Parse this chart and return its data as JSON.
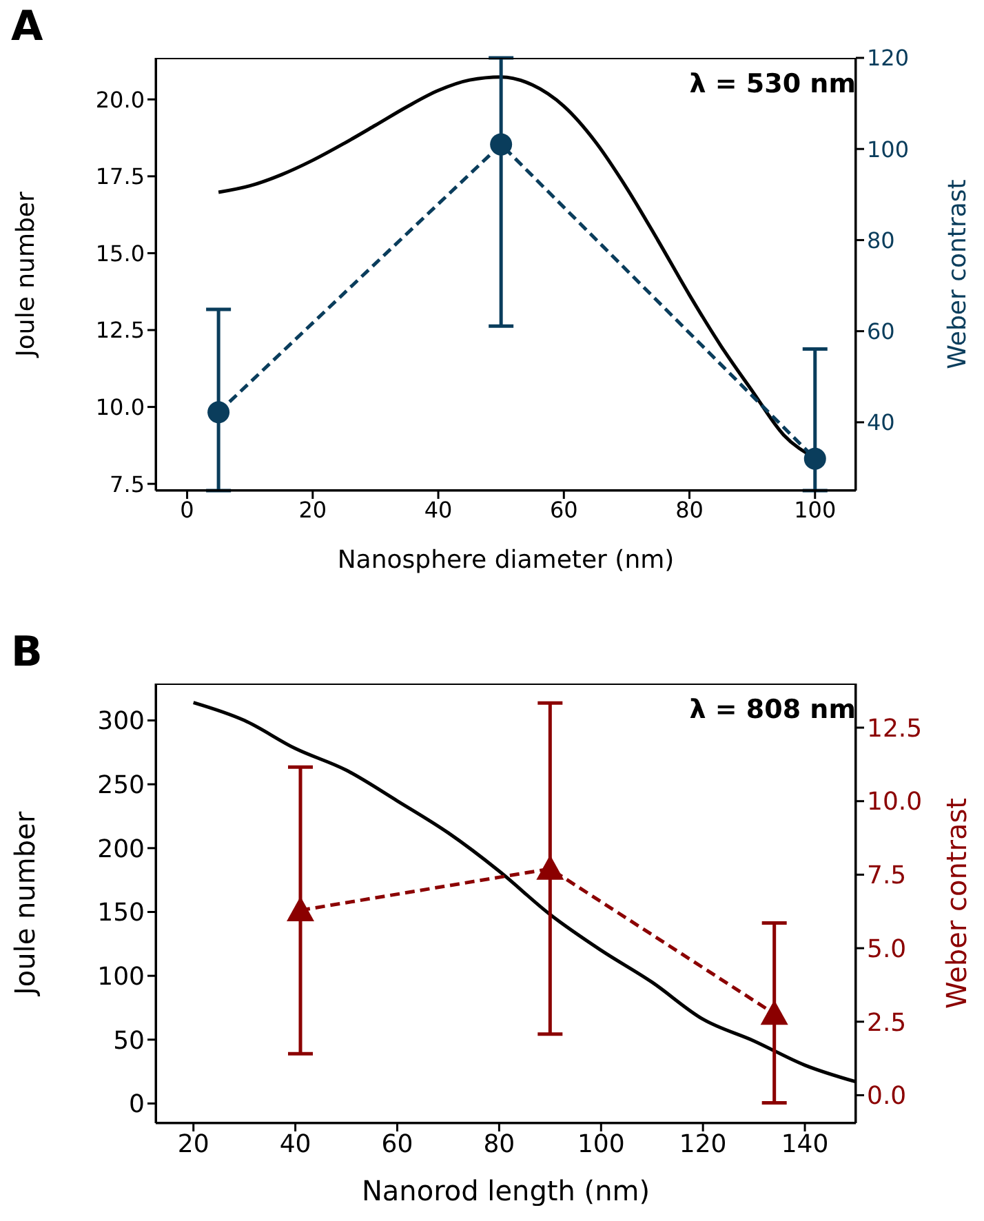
{
  "chart_data": [
    {
      "type": "line",
      "title": "A",
      "xlabel": "Nanosphere diameter (nm)",
      "ylabel": "Joule number",
      "y2label": "Weber contrast",
      "annotations": [
        "λ = 530 nm"
      ],
      "xlim": [
        -5,
        106.5
      ],
      "xticks": [
        0,
        20,
        40,
        60,
        80,
        100
      ],
      "ylim": [
        7.28,
        21.35
      ],
      "yticks": [
        {
          "value": 7.5,
          "label": "7.5"
        },
        {
          "value": 10,
          "label": "10.0"
        },
        {
          "value": 12.5,
          "label": "12.5"
        },
        {
          "value": 15,
          "label": "15.0"
        },
        {
          "value": 17.5,
          "label": "17.5"
        },
        {
          "value": 20,
          "label": "20.0"
        }
      ],
      "y2lim": [
        25,
        120
      ],
      "y2ticks": [
        40,
        60,
        80,
        100,
        120
      ],
      "series": [
        {
          "color": "#000000",
          "line_style": "solid",
          "marker": "none",
          "x": [
            5,
            10,
            15,
            20,
            25,
            30,
            35,
            40,
            45,
            50,
            55,
            60,
            65,
            70,
            75,
            80,
            85,
            90,
            95,
            100
          ],
          "values": [
            16.98,
            17.19,
            17.55,
            18.02,
            18.57,
            19.16,
            19.76,
            20.29,
            20.63,
            20.73,
            20.47,
            19.78,
            18.63,
            17.12,
            15.41,
            13.64,
            11.99,
            10.52,
            9.09,
            8.34
          ]
        },
        {
          "color": "#0a3d5c",
          "axis": "y2",
          "line_style": "dashed",
          "marker": "circle",
          "x": [
            5,
            50,
            100
          ],
          "values": [
            42.2,
            101.0,
            32.0
          ],
          "errors": [
            [
              25,
              64.8
            ],
            [
              61.1,
              120
            ],
            [
              25,
              56.1
            ]
          ]
        }
      ]
    },
    {
      "type": "line",
      "title": "B",
      "xlabel": "Nanorod length (nm)",
      "ylabel": "Joule number",
      "y2label": "Weber contrast",
      "annotations": [
        "λ = 808 nm"
      ],
      "xlim": [
        12.6,
        150
      ],
      "xticks": [
        20,
        40,
        60,
        80,
        100,
        120,
        140
      ],
      "ylim": [
        -15.4,
        328.9
      ],
      "yticks": [
        0,
        50,
        100,
        150,
        200,
        250,
        300
      ],
      "y2lim": [
        -0.95,
        14.0
      ],
      "y2ticks": [
        {
          "value": 0,
          "label": "0.0"
        },
        {
          "value": 2.5,
          "label": "2.5"
        },
        {
          "value": 5,
          "label": "5.0"
        },
        {
          "value": 7.5,
          "label": "7.5"
        },
        {
          "value": 10,
          "label": "10.0"
        },
        {
          "value": 12.5,
          "label": "12.5"
        }
      ],
      "series": [
        {
          "color": "#000000",
          "line_style": "solid",
          "marker": "none",
          "x": [
            20,
            30,
            40,
            50,
            60,
            70,
            80,
            90,
            100,
            110,
            120,
            130,
            140,
            150
          ],
          "values": [
            314,
            300,
            278,
            261,
            237,
            212,
            182,
            148,
            120,
            95,
            66,
            49,
            30,
            17
          ]
        },
        {
          "color": "#8b0000",
          "axis": "y2",
          "line_style": "dashed",
          "marker": "triangle",
          "x": [
            41,
            90,
            134
          ],
          "values": [
            6.29,
            7.7,
            2.77
          ],
          "errors": [
            [
              1.41,
              11.16
            ],
            [
              2.08,
              13.34
            ],
            [
              -0.26,
              5.86
            ]
          ]
        }
      ]
    }
  ]
}
